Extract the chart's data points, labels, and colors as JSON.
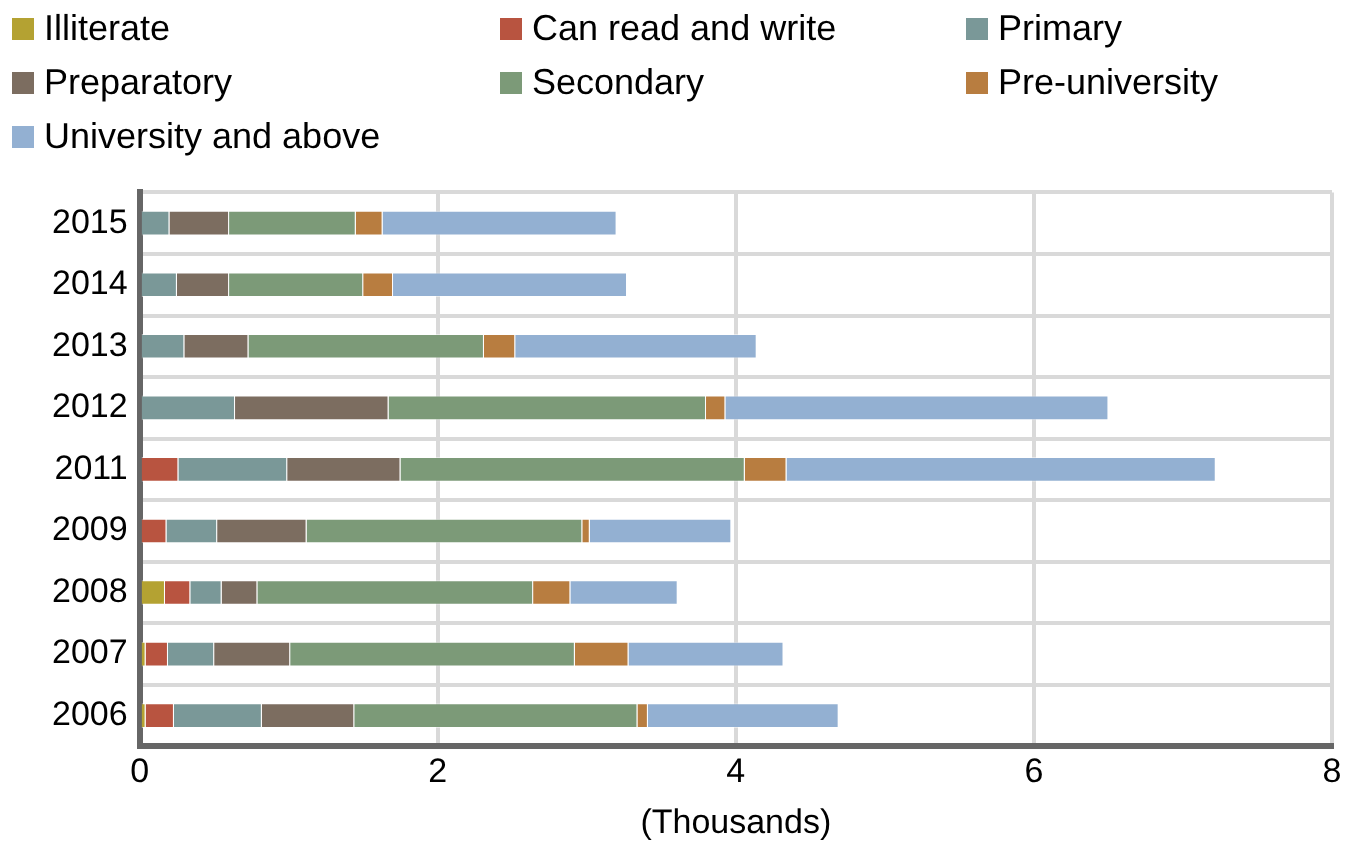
{
  "chart_data": {
    "type": "bar",
    "orientation": "horizontal",
    "stacked": true,
    "xlabel": "(Thousands)",
    "categories": [
      "2015",
      "2014",
      "2013",
      "2012",
      "2011",
      "2009",
      "2008",
      "2007",
      "2006"
    ],
    "series": [
      {
        "name": "Illiterate",
        "color": "#b4a232",
        "values": [
          0,
          0,
          0,
          0,
          0,
          0,
          0.17,
          0.04,
          0.04
        ]
      },
      {
        "name": "Can read and write",
        "color": "#b85440",
        "values": [
          0,
          0,
          0,
          0,
          0.26,
          0.18,
          0.17,
          0.15,
          0.19
        ]
      },
      {
        "name": "Primary",
        "color": "#7a9898",
        "values": [
          0.2,
          0.25,
          0.3,
          0.64,
          0.73,
          0.34,
          0.21,
          0.31,
          0.59
        ]
      },
      {
        "name": "Preparatory",
        "color": "#7c6d60",
        "values": [
          0.4,
          0.35,
          0.43,
          1.03,
          0.76,
          0.6,
          0.24,
          0.51,
          0.62
        ]
      },
      {
        "name": "Secondary",
        "color": "#7c9a78",
        "values": [
          0.85,
          0.9,
          1.58,
          2.13,
          2.31,
          1.85,
          1.85,
          1.91,
          1.9
        ]
      },
      {
        "name": "Pre-university",
        "color": "#b87d40",
        "values": [
          0.18,
          0.2,
          0.21,
          0.13,
          0.28,
          0.05,
          0.25,
          0.36,
          0.07
        ]
      },
      {
        "name": "University and above",
        "color": "#93b0d2",
        "values": [
          1.57,
          1.57,
          1.62,
          2.57,
          2.88,
          0.95,
          0.72,
          1.04,
          1.28
        ]
      }
    ],
    "xlim": [
      0,
      8
    ],
    "xticks": [
      0,
      2,
      4,
      6,
      8
    ],
    "grid": true,
    "legend": "top"
  }
}
